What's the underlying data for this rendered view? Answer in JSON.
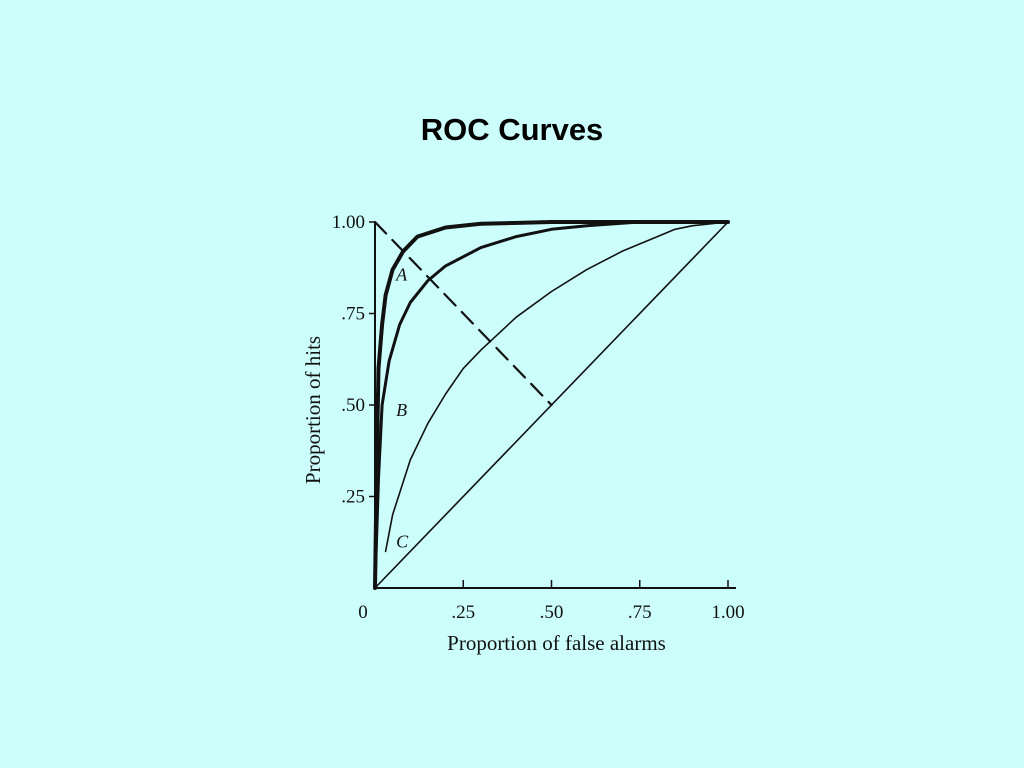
{
  "slide": {
    "title": "ROC Curves"
  },
  "colors": {
    "background": "#ccfffc",
    "ink": "#111111"
  },
  "chart_data": {
    "type": "line",
    "title": "",
    "xlabel": "Proportion of false alarms",
    "ylabel": "Proportion of hits",
    "xlim": [
      0,
      1
    ],
    "ylim": [
      0,
      1
    ],
    "grid": false,
    "legend": "none",
    "x_tick_labels": [
      "0",
      ".25",
      ".50",
      ".75",
      "1.00"
    ],
    "x_tick_values": [
      0,
      0.25,
      0.5,
      0.75,
      1.0
    ],
    "y_tick_labels": [
      ".25",
      ".50",
      ".75",
      "1.00"
    ],
    "y_tick_values": [
      0.25,
      0.5,
      0.75,
      1.0
    ],
    "series": [
      {
        "name": "A",
        "style": "thick-solid",
        "x": [
          0,
          0.005,
          0.01,
          0.02,
          0.03,
          0.05,
          0.08,
          0.12,
          0.2,
          0.3,
          0.5,
          0.75,
          1.0
        ],
        "y": [
          0,
          0.35,
          0.6,
          0.72,
          0.8,
          0.87,
          0.92,
          0.96,
          0.985,
          0.995,
          1.0,
          1.0,
          1.0
        ]
      },
      {
        "name": "B",
        "style": "medium-solid",
        "x": [
          0,
          0.01,
          0.02,
          0.04,
          0.07,
          0.1,
          0.15,
          0.2,
          0.3,
          0.4,
          0.5,
          0.6,
          0.75,
          1.0
        ],
        "y": [
          0,
          0.3,
          0.5,
          0.62,
          0.72,
          0.78,
          0.84,
          0.88,
          0.93,
          0.96,
          0.98,
          0.99,
          1.0,
          1.0
        ]
      },
      {
        "name": "C",
        "style": "thin-solid",
        "x": [
          0.03,
          0.05,
          0.1,
          0.15,
          0.2,
          0.25,
          0.3,
          0.4,
          0.5,
          0.6,
          0.7,
          0.8,
          0.85,
          0.9,
          1.0
        ],
        "y": [
          0.1,
          0.2,
          0.35,
          0.45,
          0.53,
          0.6,
          0.65,
          0.74,
          0.81,
          0.87,
          0.92,
          0.96,
          0.98,
          0.99,
          1.0
        ]
      },
      {
        "name": "chance",
        "style": "thin-solid",
        "x": [
          0,
          1
        ],
        "y": [
          0,
          1
        ]
      },
      {
        "name": "negative-diagonal",
        "style": "dashed",
        "x": [
          0,
          0.5
        ],
        "y": [
          1,
          0.5
        ]
      }
    ],
    "curve_labels": [
      {
        "text": "A",
        "x": 0.06,
        "y": 0.84
      },
      {
        "text": "B",
        "x": 0.06,
        "y": 0.47
      },
      {
        "text": "C",
        "x": 0.06,
        "y": 0.11
      }
    ]
  }
}
